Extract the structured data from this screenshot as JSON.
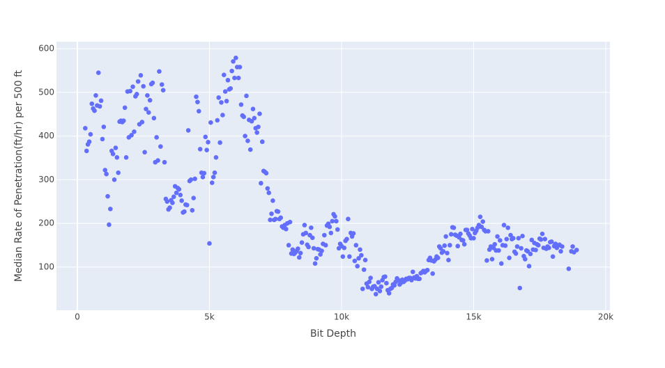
{
  "chart_data": {
    "type": "scatter",
    "x_label": "Bit Depth",
    "y_label": "Median Rate of Penetration(ft/hr) per 500 ft",
    "color": "#636efa",
    "grid": true,
    "xlim": [
      -790,
      20160
    ],
    "ylim": [
      1,
      616
    ],
    "xticks": [
      {
        "value": 0,
        "label": "0"
      },
      {
        "value": 5000,
        "label": "5k"
      },
      {
        "value": 10000,
        "label": "10k"
      },
      {
        "value": 15000,
        "label": "15k"
      },
      {
        "value": 20000,
        "label": "20k"
      }
    ],
    "yticks": [
      100,
      200,
      300,
      400,
      500,
      600
    ],
    "x": [
      300,
      350,
      400,
      450,
      500,
      550,
      600,
      650,
      700,
      750,
      800,
      850,
      900,
      950,
      1000,
      1050,
      1100,
      1150,
      1200,
      1250,
      1300,
      1350,
      1400,
      1450,
      1500,
      1550,
      1600,
      1650,
      1700,
      1750,
      1800,
      1850,
      1900,
      1950,
      2000,
      2050,
      2100,
      2150,
      2200,
      2250,
      2300,
      2350,
      2400,
      2450,
      2500,
      2550,
      2600,
      2650,
      2700,
      2750,
      2800,
      2850,
      2900,
      2950,
      3000,
      3050,
      3100,
      3150,
      3200,
      3250,
      3300,
      3350,
      3400,
      3450,
      3500,
      3550,
      3600,
      3650,
      3700,
      3750,
      3800,
      3850,
      3900,
      3950,
      4000,
      4050,
      4100,
      4150,
      4200,
      4250,
      4300,
      4350,
      4400,
      4450,
      4500,
      4550,
      4600,
      4650,
      4700,
      4750,
      4800,
      4850,
      4900,
      4950,
      5000,
      5050,
      5100,
      5150,
      5200,
      5250,
      5300,
      5350,
      5400,
      5450,
      5500,
      5550,
      5600,
      5650,
      5700,
      5750,
      5800,
      5850,
      5900,
      5950,
      6000,
      6050,
      6100,
      6150,
      6200,
      6250,
      6300,
      6350,
      6400,
      6450,
      6500,
      6550,
      6600,
      6650,
      6700,
      6750,
      6800,
      6850,
      6900,
      6950,
      7000,
      7050,
      7100,
      7150,
      7200,
      7250,
      7300,
      7350,
      7400,
      7450,
      7500,
      7550,
      7600,
      7650,
      7700,
      7750,
      7800,
      7850,
      7900,
      7950,
      8000,
      8050,
      8100,
      8150,
      8200,
      8250,
      8300,
      8350,
      8400,
      8450,
      8500,
      8550,
      8600,
      8650,
      8700,
      8750,
      8800,
      8850,
      8900,
      8950,
      9000,
      9050,
      9100,
      9150,
      9200,
      9250,
      9300,
      9350,
      9400,
      9450,
      9500,
      9550,
      9600,
      9650,
      9700,
      9750,
      9800,
      9850,
      9900,
      9950,
      10000,
      10050,
      10100,
      10150,
      10200,
      10250,
      10300,
      10350,
      10400,
      10450,
      10500,
      10550,
      10600,
      10650,
      10700,
      10750,
      10800,
      10850,
      10900,
      10950,
      11000,
      11050,
      11100,
      11150,
      11200,
      11250,
      11300,
      11350,
      11400,
      11450,
      11500,
      11550,
      11600,
      11650,
      11700,
      11750,
      11800,
      11850,
      11900,
      11950,
      12000,
      12050,
      12100,
      12150,
      12200,
      12250,
      12300,
      12350,
      12400,
      12450,
      12500,
      12550,
      12600,
      12650,
      12700,
      12750,
      12800,
      12850,
      12900,
      12950,
      13000,
      13050,
      13100,
      13150,
      13200,
      13250,
      13300,
      13350,
      13400,
      13450,
      13500,
      13550,
      13600,
      13650,
      13700,
      13750,
      13800,
      13850,
      13900,
      13950,
      14000,
      14050,
      14100,
      14150,
      14200,
      14250,
      14300,
      14350,
      14400,
      14450,
      14500,
      14550,
      14600,
      14650,
      14700,
      14750,
      14800,
      14850,
      14900,
      14950,
      15000,
      15050,
      15100,
      15150,
      15200,
      15250,
      15300,
      15350,
      15400,
      15450,
      15500,
      15550,
      15600,
      15650,
      15700,
      15750,
      15800,
      15850,
      15900,
      15950,
      16000,
      16050,
      16100,
      16150,
      16200,
      16250,
      16300,
      16350,
      16400,
      16450,
      16500,
      16550,
      16600,
      16650,
      16700,
      16750,
      16800,
      16850,
      16900,
      16950,
      17000,
      17050,
      17100,
      17150,
      17200,
      17250,
      17300,
      17350,
      17400,
      17450,
      17500,
      17550,
      17600,
      17650,
      17700,
      17750,
      17800,
      17850,
      17900,
      17950,
      18000,
      18050,
      18100,
      18150,
      18200,
      18250,
      18300,
      18350,
      18600,
      18700,
      18750,
      18800,
      18900
    ],
    "values": [
      418,
      366,
      381,
      387,
      404,
      474,
      463,
      458,
      493,
      470,
      545,
      468,
      481,
      393,
      421,
      322,
      313,
      262,
      197,
      233,
      366,
      359,
      300,
      373,
      351,
      316,
      433,
      435,
      432,
      435,
      465,
      351,
      502,
      397,
      503,
      402,
      513,
      410,
      491,
      496,
      525,
      427,
      539,
      432,
      514,
      363,
      462,
      493,
      454,
      482,
      519,
      522,
      441,
      340,
      397,
      344,
      548,
      376,
      518,
      505,
      340,
      256,
      250,
      232,
      236,
      253,
      247,
      261,
      285,
      270,
      281,
      278,
      265,
      252,
      225,
      227,
      243,
      242,
      413,
      297,
      300,
      230,
      258,
      302,
      490,
      478,
      457,
      370,
      316,
      306,
      315,
      398,
      368,
      386,
      154,
      431,
      293,
      306,
      316,
      351,
      436,
      488,
      385,
      477,
      448,
      540,
      502,
      480,
      528,
      507,
      509,
      549,
      571,
      533,
      579,
      558,
      533,
      558,
      472,
      447,
      444,
      400,
      492,
      389,
      437,
      369,
      434,
      462,
      441,
      418,
      408,
      421,
      451,
      292,
      387,
      320,
      318,
      315,
      280,
      270,
      208,
      222,
      252,
      208,
      210,
      228,
      227,
      210,
      213,
      193,
      190,
      196,
      187,
      200,
      150,
      203,
      131,
      140,
      130,
      133,
      137,
      142,
      122,
      132,
      156,
      175,
      196,
      178,
      151,
      146,
      173,
      190,
      167,
      143,
      108,
      120,
      141,
      140,
      129,
      137,
      153,
      173,
      150,
      195,
      199,
      192,
      178,
      205,
      221,
      216,
      205,
      186,
      143,
      153,
      148,
      124,
      144,
      160,
      164,
      210,
      124,
      178,
      170,
      177,
      114,
      150,
      102,
      120,
      140,
      127,
      50,
      94,
      116,
      62,
      54,
      66,
      75,
      50,
      55,
      56,
      38,
      50,
      65,
      45,
      55,
      70,
      77,
      78,
      63,
      47,
      40,
      50,
      52,
      60,
      58,
      66,
      74,
      70,
      60,
      64,
      71,
      66,
      69,
      73,
      72,
      75,
      75,
      70,
      89,
      76,
      74,
      79,
      73,
      73,
      86,
      88,
      91,
      88,
      91,
      93,
      116,
      121,
      115,
      85,
      113,
      117,
      124,
      121,
      147,
      143,
      133,
      136,
      149,
      170,
      132,
      116,
      150,
      175,
      191,
      190,
      174,
      172,
      148,
      168,
      176,
      162,
      161,
      152,
      185,
      185,
      177,
      172,
      166,
      187,
      166,
      178,
      183,
      190,
      196,
      215,
      192,
      204,
      185,
      182,
      115,
      182,
      140,
      147,
      118,
      144,
      152,
      138,
      170,
      138,
      161,
      108,
      150,
      196,
      149,
      164,
      190,
      121,
      173,
      164,
      166,
      135,
      131,
      147,
      166,
      52,
      143,
      171,
      125,
      118,
      138,
      136,
      102,
      130,
      162,
      140,
      155,
      139,
      152,
      150,
      165,
      163,
      176,
      144,
      164,
      142,
      147,
      144,
      157,
      158,
      124,
      148,
      153,
      144,
      149,
      151,
      136,
      147,
      96,
      136,
      147,
      134,
      139
    ]
  }
}
